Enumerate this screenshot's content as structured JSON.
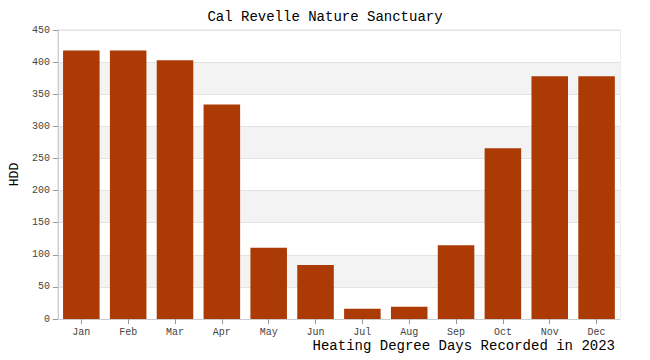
{
  "chart_data": {
    "type": "bar",
    "title": "Cal Revelle Nature Sanctuary",
    "xlabel": "Heating Degree Days Recorded in 2023",
    "ylabel": "HDD",
    "categories": [
      "Jan",
      "Feb",
      "Mar",
      "Apr",
      "May",
      "Jun",
      "Jul",
      "Aug",
      "Sep",
      "Oct",
      "Nov",
      "Dec"
    ],
    "values": [
      418,
      418,
      403,
      334,
      111,
      84,
      16,
      19,
      115,
      266,
      378,
      378
    ],
    "color": "#ac3a04",
    "ylim": [
      0,
      450
    ],
    "yticks": [
      0,
      50,
      100,
      150,
      200,
      250,
      300,
      350,
      400,
      450
    ],
    "grid": true
  }
}
